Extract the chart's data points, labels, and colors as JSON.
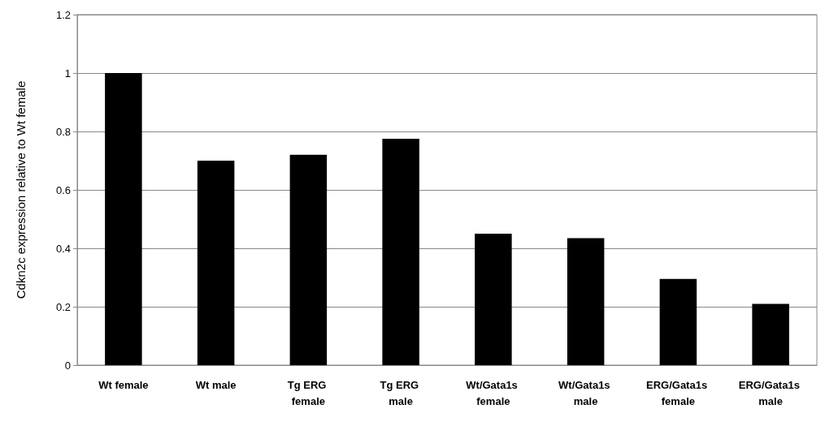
{
  "chart_data": {
    "type": "bar",
    "ylabel": "Cdkn2c expression relative to Wt female",
    "categories": [
      "Wt female",
      "Wt male",
      "Tg ERG female",
      "Tg ERG male",
      "Wt/Gata1s female",
      "Wt/Gata1s male",
      "ERG/Gata1s female",
      "ERG/Gata1s male"
    ],
    "values": [
      1.0,
      0.7,
      0.72,
      0.775,
      0.45,
      0.435,
      0.295,
      0.21
    ],
    "color": "#000000",
    "ylim": [
      0,
      1.2
    ],
    "yticks": [
      0,
      0.2,
      0.4,
      0.6,
      0.8,
      1,
      1.2
    ],
    "grid": "y"
  }
}
